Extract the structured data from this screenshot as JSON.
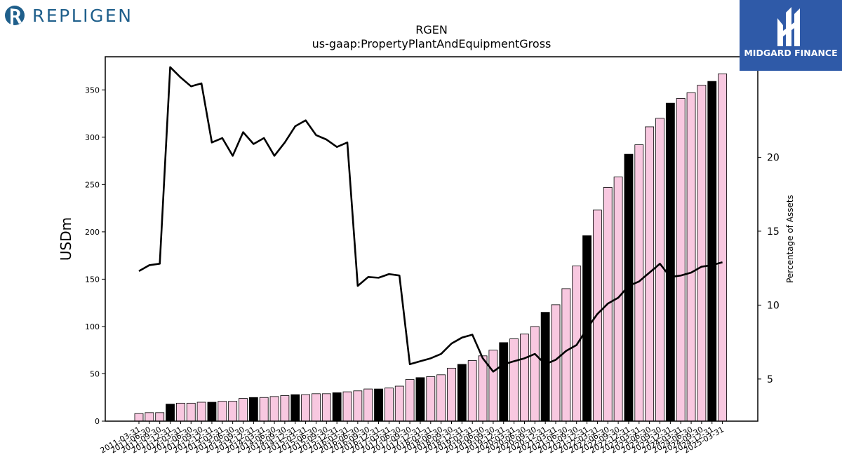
{
  "branding": {
    "company_logo_text": "REPLIGEN",
    "partner_logo_text": "MIDGARD FINANCE",
    "company_color": "#1f5f8b",
    "partner_bg": "#2f5aa8"
  },
  "chart_data": {
    "type": "bar",
    "title": "RGEN",
    "subtitle": "us-gaap:PropertyPlantAndEquipmentGross",
    "ylabel": "USDm",
    "ylabel_right": "Percentage of Assets",
    "ylim": [
      0,
      385
    ],
    "yticks": [
      0,
      50,
      100,
      150,
      200,
      250,
      300,
      350
    ],
    "ylim_right": [
      2.15,
      26.8
    ],
    "yticks_right": [
      5,
      10,
      15,
      20
    ],
    "categories": [
      "2011-03-31",
      "2011-06-30",
      "2011-09-30",
      "2011-12-31",
      "2012-03-31",
      "2012-06-30",
      "2012-09-30",
      "2012-12-31",
      "2013-03-31",
      "2013-06-30",
      "2013-09-30",
      "2013-12-31",
      "2014-03-31",
      "2014-06-30",
      "2014-09-30",
      "2014-12-31",
      "2015-03-31",
      "2015-06-30",
      "2015-09-30",
      "2015-12-31",
      "2016-03-31",
      "2016-06-30",
      "2016-09-30",
      "2016-12-31",
      "2017-03-31",
      "2017-06-30",
      "2017-09-30",
      "2017-12-31",
      "2018-03-31",
      "2018-06-30",
      "2018-09-30",
      "2018-12-31",
      "2019-03-31",
      "2019-06-30",
      "2019-09-30",
      "2019-12-31",
      "2020-03-31",
      "2020-06-30",
      "2020-09-30",
      "2020-12-31",
      "2021-03-31",
      "2021-06-30",
      "2021-09-30",
      "2021-12-31",
      "2022-03-31",
      "2022-06-30",
      "2022-09-30",
      "2022-12-31",
      "2023-03-31",
      "2023-06-30",
      "2023-09-30",
      "2023-12-31",
      "2024-03-31",
      "2024-06-30",
      "2024-09-30",
      "2024-12-31",
      "2025-03-31"
    ],
    "series": [
      {
        "kind": "bar",
        "values": [
          8,
          9,
          9,
          18,
          19,
          19,
          20,
          20,
          21,
          21,
          24,
          25,
          25,
          26,
          27,
          28,
          28,
          29,
          29,
          30,
          31,
          32,
          34,
          34,
          35,
          37,
          44,
          46,
          47,
          49,
          56,
          60,
          64,
          69,
          75,
          83,
          87,
          92,
          100,
          115,
          123,
          140,
          164,
          196,
          223,
          247,
          258,
          282,
          292,
          311,
          320,
          336,
          341,
          347,
          355,
          359,
          367
        ],
        "color": "#f8c8e0",
        "highlight_color": "#000000",
        "highlight_every": 4,
        "highlight_offset": 3
      },
      {
        "kind": "line",
        "axis": "right",
        "values": [
          12.3,
          12.7,
          12.8,
          26.1,
          25.4,
          24.8,
          25.0,
          21.0,
          21.3,
          20.1,
          21.7,
          20.9,
          21.3,
          20.1,
          21.0,
          22.1,
          22.5,
          21.5,
          21.2,
          20.7,
          21.0,
          11.3,
          11.9,
          11.85,
          12.1,
          12.0,
          6.0,
          6.2,
          6.4,
          6.7,
          7.4,
          7.8,
          8.0,
          6.4,
          5.5,
          6.0,
          6.2,
          6.4,
          6.7,
          6.0,
          6.3,
          6.9,
          7.3,
          8.4,
          9.4,
          10.1,
          10.5,
          11.3,
          11.6,
          12.2,
          12.8,
          11.9,
          12.0,
          12.2,
          12.6,
          12.7,
          12.9
        ],
        "color": "#000000"
      }
    ]
  }
}
